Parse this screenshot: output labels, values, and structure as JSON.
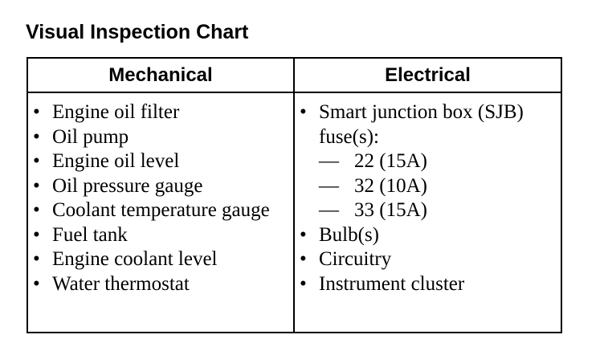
{
  "title": "Visual Inspection Chart",
  "columns": {
    "mechanical": {
      "header": "Mechanical",
      "items": [
        "Engine oil filter",
        "Oil pump",
        "Engine oil level",
        "Oil pressure gauge",
        "Coolant temperature gauge",
        "Fuel tank",
        "Engine coolant level",
        "Water thermostat"
      ]
    },
    "electrical": {
      "header": "Electrical",
      "items": [
        {
          "label": "Smart junction box (SJB) fuse(s):",
          "sub": [
            "22 (15A)",
            "32 (10A)",
            "33 (15A)"
          ]
        },
        {
          "label": "Bulb(s)"
        },
        {
          "label": "Circuitry"
        },
        {
          "label": "Instrument cluster"
        }
      ]
    }
  },
  "bullet_glyph": "•",
  "dash_glyph": "—"
}
